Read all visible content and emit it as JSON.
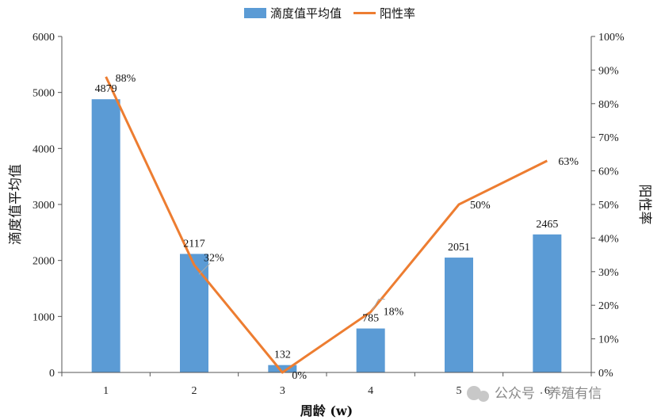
{
  "chart_data": {
    "type": "bar+line",
    "categories": [
      "1",
      "2",
      "3",
      "4",
      "5",
      "6"
    ],
    "series": [
      {
        "name": "滴度值平均值",
        "type": "bar",
        "axis": "left",
        "values": [
          4879,
          2117,
          132,
          785,
          2051,
          2465
        ],
        "labels": [
          "4879",
          "2117",
          "132",
          "785",
          "2051",
          "2465"
        ],
        "color": "#5b9bd5"
      },
      {
        "name": "阳性率",
        "type": "line",
        "axis": "right",
        "values": [
          88,
          32,
          0,
          18,
          50,
          63
        ],
        "labels": [
          "88%",
          "32%",
          "0%",
          "18%",
          "50%",
          "63%"
        ],
        "color": "#ed7d31"
      }
    ],
    "xlabel": "周龄 (w)",
    "ylabel": "滴度值平均值",
    "y2label": "阳性率",
    "ylim": [
      0,
      6000
    ],
    "yticks": [
      "0",
      "1000",
      "2000",
      "3000",
      "4000",
      "5000",
      "6000"
    ],
    "y2lim": [
      0,
      100
    ],
    "y2ticks": [
      "0%",
      "10%",
      "20%",
      "30%",
      "40%",
      "50%",
      "60%",
      "70%",
      "80%",
      "90%",
      "100%"
    ],
    "grid": false,
    "legend": "top-center"
  },
  "watermark": "公众号 · 养殖有信"
}
